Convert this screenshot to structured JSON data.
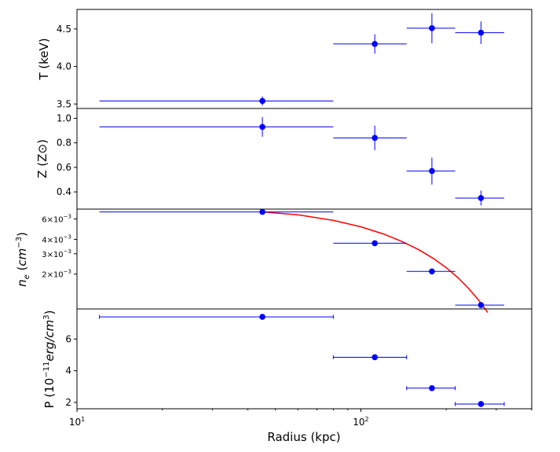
{
  "colors": {
    "points": "#0000ff",
    "fit": "#ff0000",
    "axes": "#000000"
  },
  "chart_data": {
    "type": "scatter",
    "xscale": "log",
    "xlim": [
      10,
      400
    ],
    "xlabel": "Radius (kpc)",
    "xticks": [
      {
        "value": 10,
        "base": "10",
        "exp": "1"
      },
      {
        "value": 100,
        "base": "10",
        "exp": "2"
      }
    ],
    "panels": [
      {
        "id": "temperature",
        "ylabel": "T (keV)",
        "yscale": "linear",
        "ylim": [
          3.44,
          4.76
        ],
        "yticks": [
          {
            "value": 3.5,
            "label": "3.5"
          },
          {
            "value": 4.0,
            "label": "4.0"
          },
          {
            "value": 4.5,
            "label": "4.5"
          }
        ],
        "points": [
          {
            "x": 45,
            "xlo": 12,
            "xhi": 80,
            "y": 3.54,
            "yerr": 0.06
          },
          {
            "x": 112,
            "xlo": 80,
            "xhi": 145,
            "y": 4.3,
            "yerr": 0.13
          },
          {
            "x": 178,
            "xlo": 145,
            "xhi": 215,
            "y": 4.51,
            "yerr": 0.2
          },
          {
            "x": 265,
            "xlo": 215,
            "xhi": 320,
            "y": 4.45,
            "yerr": 0.15
          }
        ]
      },
      {
        "id": "metallicity",
        "ylabel": "Z (Z⊙)",
        "yscale": "linear",
        "ylim": [
          0.26,
          1.08
        ],
        "yticks": [
          {
            "value": 0.4,
            "label": "0.4"
          },
          {
            "value": 0.6,
            "label": "0.6"
          },
          {
            "value": 0.8,
            "label": "0.8"
          },
          {
            "value": 1.0,
            "label": "1.0"
          }
        ],
        "points": [
          {
            "x": 45,
            "xlo": 12,
            "xhi": 80,
            "y": 0.93,
            "yerr": 0.08
          },
          {
            "x": 112,
            "xlo": 80,
            "xhi": 145,
            "y": 0.84,
            "yerr": 0.1
          },
          {
            "x": 178,
            "xlo": 145,
            "xhi": 215,
            "y": 0.57,
            "yerr": 0.11
          },
          {
            "x": 265,
            "xlo": 215,
            "xhi": 320,
            "y": 0.35,
            "yerr": 0.06
          }
        ]
      },
      {
        "id": "density",
        "ylabel": "n_e (cm^-3)",
        "yscale": "log",
        "ylim": [
          0.001,
          0.0073
        ],
        "yticks": [
          {
            "value": 0.002,
            "base": "2×10",
            "exp": "−3"
          },
          {
            "value": 0.003,
            "base": "3×10",
            "exp": "−3"
          },
          {
            "value": 0.004,
            "base": "4×10",
            "exp": "−3"
          },
          {
            "value": 0.006,
            "base": "6×10",
            "exp": "−3"
          }
        ],
        "points": [
          {
            "x": 45,
            "xlo": 12,
            "xhi": 80,
            "y": 0.0069,
            "yerr": 0
          },
          {
            "x": 112,
            "xlo": 80,
            "xhi": 145,
            "y": 0.0037,
            "yerr": 0
          },
          {
            "x": 178,
            "xlo": 145,
            "xhi": 215,
            "y": 0.00211,
            "yerr": 0
          },
          {
            "x": 265,
            "xlo": 215,
            "xhi": 320,
            "y": 0.00108,
            "yerr": 0
          }
        ],
        "fit_curve": {
          "x": [
            45,
            60,
            80,
            100,
            120,
            140,
            160,
            180,
            200,
            220,
            240,
            260,
            280
          ],
          "y": [
            0.0069,
            0.00652,
            0.00583,
            0.00513,
            0.00445,
            0.00382,
            0.00325,
            0.00273,
            0.00227,
            0.00186,
            0.0015,
            0.00119,
            0.00093
          ]
        }
      },
      {
        "id": "pressure",
        "ylabel": "P (10^-11 erg/cm^3)",
        "yscale": "linear",
        "ylim": [
          1.6,
          7.9
        ],
        "yticks": [
          {
            "value": 2,
            "label": "2"
          },
          {
            "value": 4,
            "label": "4"
          },
          {
            "value": 6,
            "label": "6"
          }
        ],
        "points": [
          {
            "x": 45,
            "xlo": 12,
            "xhi": 80,
            "y": 7.4,
            "yerr": 0.15
          },
          {
            "x": 112,
            "xlo": 80,
            "xhi": 145,
            "y": 4.85,
            "yerr": 0.12
          },
          {
            "x": 178,
            "xlo": 145,
            "xhi": 215,
            "y": 2.9,
            "yerr": 0.06
          },
          {
            "x": 265,
            "xlo": 215,
            "xhi": 320,
            "y": 1.9,
            "yerr": 0.05
          }
        ]
      }
    ]
  }
}
